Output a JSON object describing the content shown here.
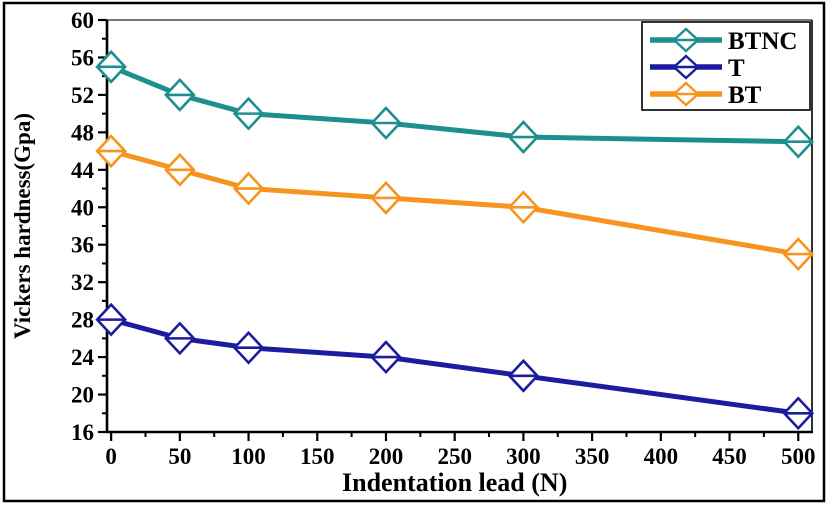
{
  "figure": {
    "background": "#ffffff",
    "border_color": "#000000"
  },
  "chart_data": {
    "type": "line",
    "title": "",
    "xlabel": "Indentation lead (N)",
    "ylabel": "Vickers hardness(Gpa)",
    "x": [
      0,
      50,
      100,
      200,
      300,
      500
    ],
    "series": [
      {
        "name": "BTNC",
        "color": "#1E8E8E",
        "values": [
          55,
          52,
          50,
          49,
          47.5,
          47
        ]
      },
      {
        "name": "T",
        "color": "#1C1C9E",
        "values": [
          28,
          26,
          25,
          24,
          22,
          18
        ]
      },
      {
        "name": "BT",
        "color": "#F7941E",
        "values": [
          46,
          44,
          42,
          41,
          40,
          35
        ]
      }
    ],
    "xlim": [
      -3,
      510
    ],
    "ylim": [
      16,
      60
    ],
    "x_ticks": [
      0,
      50,
      100,
      150,
      200,
      250,
      300,
      350,
      400,
      450,
      500
    ],
    "x_minor_step": 25,
    "y_ticks": [
      16,
      20,
      24,
      28,
      32,
      36,
      40,
      44,
      48,
      52,
      56,
      60
    ],
    "y_minor_step": 2,
    "grid": false,
    "legend_position": "top-right",
    "legend_entries": [
      "BTNC",
      "T",
      "BT"
    ],
    "marker": "open-diamond-with-center-line"
  }
}
